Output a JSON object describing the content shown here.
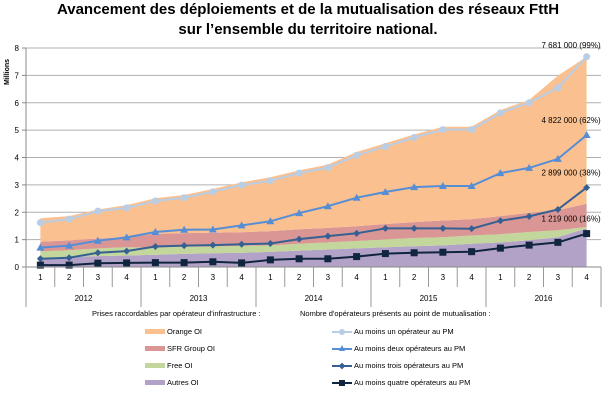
{
  "chart_data": {
    "type": "area",
    "title": "Avancement des déploiements et de la mutualisation des réseaux FttH",
    "subtitle": "sur l’ensemble du territoire national.",
    "ylabel": "Millions",
    "xlabel": "",
    "ylim": [
      0,
      8
    ],
    "yticks": [
      "0",
      "1",
      "2",
      "3",
      "4",
      "5",
      "6",
      "7",
      "8"
    ],
    "grid": true,
    "quarters": [
      "1",
      "2",
      "3",
      "4",
      "1",
      "2",
      "3",
      "4",
      "1",
      "2",
      "3",
      "4",
      "1",
      "2",
      "3",
      "4",
      "1",
      "2",
      "3",
      "4"
    ],
    "years": [
      "2012",
      "2013",
      "2014",
      "2015",
      "2016"
    ],
    "area_legend_title": "Prises raccordables par opérateur d'infrastructure :",
    "line_legend_title": "Nombre d'opérateurs présents au point de mutualisation :",
    "stacked_areas": [
      {
        "name": "Autres OI",
        "color": "#b3a2c7",
        "values": [
          0.34,
          0.36,
          0.4,
          0.42,
          0.45,
          0.48,
          0.5,
          0.52,
          0.55,
          0.6,
          0.64,
          0.68,
          0.72,
          0.76,
          0.79,
          0.85,
          0.9,
          0.98,
          1.09,
          1.41
        ]
      },
      {
        "name": "Free OI",
        "color": "#c3d69b",
        "values": [
          0.23,
          0.25,
          0.28,
          0.3,
          0.26,
          0.26,
          0.25,
          0.25,
          0.24,
          0.25,
          0.26,
          0.27,
          0.29,
          0.3,
          0.3,
          0.3,
          0.3,
          0.3,
          0.25,
          0.05
        ]
      },
      {
        "name": "SFR Group OI",
        "color": "#d99694",
        "values": [
          0.35,
          0.36,
          0.36,
          0.37,
          0.5,
          0.5,
          0.5,
          0.5,
          0.52,
          0.53,
          0.53,
          0.54,
          0.56,
          0.58,
          0.61,
          0.6,
          0.66,
          0.7,
          0.74,
          0.85
        ]
      },
      {
        "name": "Orange OI",
        "color": "#fac090",
        "values": [
          0.86,
          0.89,
          1.06,
          1.17,
          1.3,
          1.39,
          1.6,
          1.82,
          1.97,
          2.15,
          2.31,
          2.71,
          2.95,
          3.2,
          3.42,
          3.37,
          3.87,
          4.12,
          4.91,
          5.37
        ]
      }
    ],
    "series": [
      {
        "name": "Au moins un opérateur au PM",
        "color": "#b9cde5",
        "marker": "circle",
        "values": [
          1.62,
          1.75,
          2.04,
          2.16,
          2.41,
          2.53,
          2.75,
          2.99,
          3.15,
          3.43,
          3.63,
          4.08,
          4.4,
          4.73,
          5.02,
          5.02,
          5.63,
          6.0,
          6.55,
          7.68
        ]
      },
      {
        "name": "Au moins deux opérateurs au PM",
        "color": "#558ed5",
        "marker": "triangle",
        "values": [
          0.71,
          0.78,
          0.96,
          1.08,
          1.28,
          1.36,
          1.37,
          1.52,
          1.67,
          1.97,
          2.22,
          2.53,
          2.74,
          2.92,
          2.96,
          2.96,
          3.43,
          3.62,
          3.95,
          4.82
        ]
      },
      {
        "name": "Au moins trois opérateurs au PM",
        "color": "#376092",
        "marker": "diamond",
        "values": [
          0.3,
          0.34,
          0.52,
          0.58,
          0.75,
          0.78,
          0.8,
          0.83,
          0.86,
          1.02,
          1.13,
          1.23,
          1.41,
          1.41,
          1.41,
          1.4,
          1.69,
          1.85,
          2.1,
          2.9
        ]
      },
      {
        "name": "Au moins quatre opérateurs au PM",
        "color": "#10253f",
        "marker": "square",
        "values": [
          0.07,
          0.07,
          0.14,
          0.15,
          0.16,
          0.16,
          0.19,
          0.15,
          0.26,
          0.3,
          0.3,
          0.38,
          0.49,
          0.52,
          0.54,
          0.56,
          0.69,
          0.8,
          0.9,
          1.22
        ]
      }
    ],
    "annotations": [
      {
        "series": 0,
        "text": "7 681 000 (99%)"
      },
      {
        "series": 1,
        "text": "4 822 000 (62%)"
      },
      {
        "series": 2,
        "text": "2 899 000 (38%)"
      },
      {
        "series": 3,
        "text": "1 219 000 (16%)"
      }
    ],
    "legend_placement": "bottom"
  }
}
